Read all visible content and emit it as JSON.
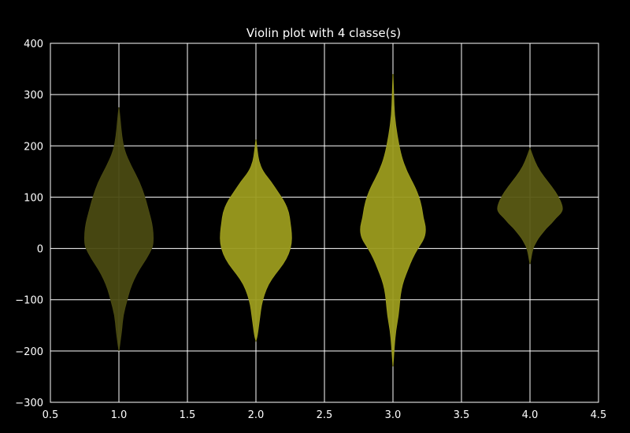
{
  "chart_data": {
    "type": "violin",
    "title": "Violin plot with 4 classe(s)",
    "xlabel": "",
    "ylabel": "",
    "xlim": [
      0.5,
      4.5
    ],
    "ylim": [
      -300,
      400
    ],
    "x_ticks": [
      "0.5",
      "1.0",
      "1.5",
      "2.0",
      "2.5",
      "3.0",
      "3.5",
      "4.0",
      "4.5"
    ],
    "y_ticks": [
      "400",
      "300",
      "200",
      "100",
      "0",
      "−100",
      "−200",
      "−300"
    ],
    "grid": true,
    "background": "#000000",
    "series": [
      {
        "position": 1.0,
        "color": "#4a4a12",
        "profile": [
          [
            275,
            0.0
          ],
          [
            250,
            0.01
          ],
          [
            220,
            0.02
          ],
          [
            190,
            0.04
          ],
          [
            160,
            0.09
          ],
          [
            130,
            0.15
          ],
          [
            100,
            0.19
          ],
          [
            70,
            0.22
          ],
          [
            50,
            0.24
          ],
          [
            30,
            0.25
          ],
          [
            10,
            0.25
          ],
          [
            0,
            0.24
          ],
          [
            -20,
            0.2
          ],
          [
            -40,
            0.15
          ],
          [
            -60,
            0.11
          ],
          [
            -80,
            0.08
          ],
          [
            -100,
            0.06
          ],
          [
            -130,
            0.03
          ],
          [
            -160,
            0.02
          ],
          [
            -180,
            0.01
          ],
          [
            -200,
            0.0
          ]
        ]
      },
      {
        "position": 2.0,
        "color": "#9b9b1e",
        "profile": [
          [
            212,
            0.0
          ],
          [
            190,
            0.01
          ],
          [
            170,
            0.02
          ],
          [
            150,
            0.05
          ],
          [
            130,
            0.11
          ],
          [
            110,
            0.16
          ],
          [
            90,
            0.21
          ],
          [
            70,
            0.24
          ],
          [
            50,
            0.25
          ],
          [
            30,
            0.26
          ],
          [
            10,
            0.26
          ],
          [
            -10,
            0.24
          ],
          [
            -30,
            0.2
          ],
          [
            -50,
            0.14
          ],
          [
            -70,
            0.09
          ],
          [
            -90,
            0.06
          ],
          [
            -110,
            0.04
          ],
          [
            -130,
            0.03
          ],
          [
            -150,
            0.02
          ],
          [
            -170,
            0.01
          ],
          [
            -180,
            0.0
          ]
        ]
      },
      {
        "position": 3.0,
        "color": "#9b9b1e",
        "profile": [
          [
            340,
            0.0
          ],
          [
            300,
            0.005
          ],
          [
            260,
            0.01
          ],
          [
            220,
            0.03
          ],
          [
            180,
            0.06
          ],
          [
            150,
            0.1
          ],
          [
            120,
            0.16
          ],
          [
            100,
            0.19
          ],
          [
            80,
            0.21
          ],
          [
            60,
            0.22
          ],
          [
            40,
            0.24
          ],
          [
            20,
            0.23
          ],
          [
            0,
            0.18
          ],
          [
            -20,
            0.14
          ],
          [
            -40,
            0.11
          ],
          [
            -60,
            0.08
          ],
          [
            -80,
            0.06
          ],
          [
            -100,
            0.05
          ],
          [
            -130,
            0.04
          ],
          [
            -160,
            0.02
          ],
          [
            -190,
            0.01
          ],
          [
            -230,
            0.0
          ]
        ]
      },
      {
        "position": 4.0,
        "color": "#5a5a14",
        "profile": [
          [
            195,
            0.0
          ],
          [
            180,
            0.02
          ],
          [
            160,
            0.05
          ],
          [
            140,
            0.1
          ],
          [
            120,
            0.16
          ],
          [
            100,
            0.21
          ],
          [
            80,
            0.24
          ],
          [
            70,
            0.23
          ],
          [
            60,
            0.19
          ],
          [
            50,
            0.16
          ],
          [
            40,
            0.12
          ],
          [
            30,
            0.09
          ],
          [
            20,
            0.06
          ],
          [
            10,
            0.04
          ],
          [
            0,
            0.02
          ],
          [
            -30,
            0.0
          ]
        ]
      }
    ]
  }
}
